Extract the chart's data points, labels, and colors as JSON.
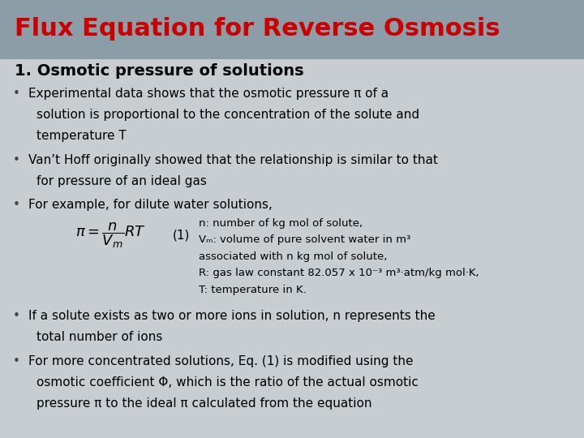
{
  "title": "Flux Equation for Reverse Osmosis",
  "title_color": "#CC0000",
  "header_bg": "#8B9EA8",
  "slide_bg": "#C8CDD1",
  "section_heading": "1. Osmotic pressure of solutions",
  "bullet1_line1": "Experimental data shows that the osmotic pressure π of a",
  "bullet1_line2": "solution is proportional to the concentration of the solute and",
  "bullet1_line3": "temperature Τ",
  "bullet2_line1": "Van’t Hoff originally showed that the relationship is similar to that",
  "bullet2_line2": "for pressure of an ideal gas",
  "bullet3_line1": "For example, for dilute water solutions,",
  "note1": "n: number of kg mol of solute,",
  "note2": "Vₘ: volume of pure solvent water in m³",
  "note3": "associated with n kg mol of solute,",
  "note4": "R: gas law constant 82.057 x 10⁻³ m³·atm/kg mol·K,",
  "note5": "T: temperature in K.",
  "bullet4_line1": "If a solute exists as two or more ions in solution, n represents the",
  "bullet4_line2": "total number of ions",
  "bullet5_line1": "For more concentrated solutions, Eq. (1) is modified using the",
  "bullet5_line2": "osmotic coefficient Φ, which is the ratio of the actual osmotic",
  "bullet5_line3": "pressure π to the ideal π calculated from the equation"
}
